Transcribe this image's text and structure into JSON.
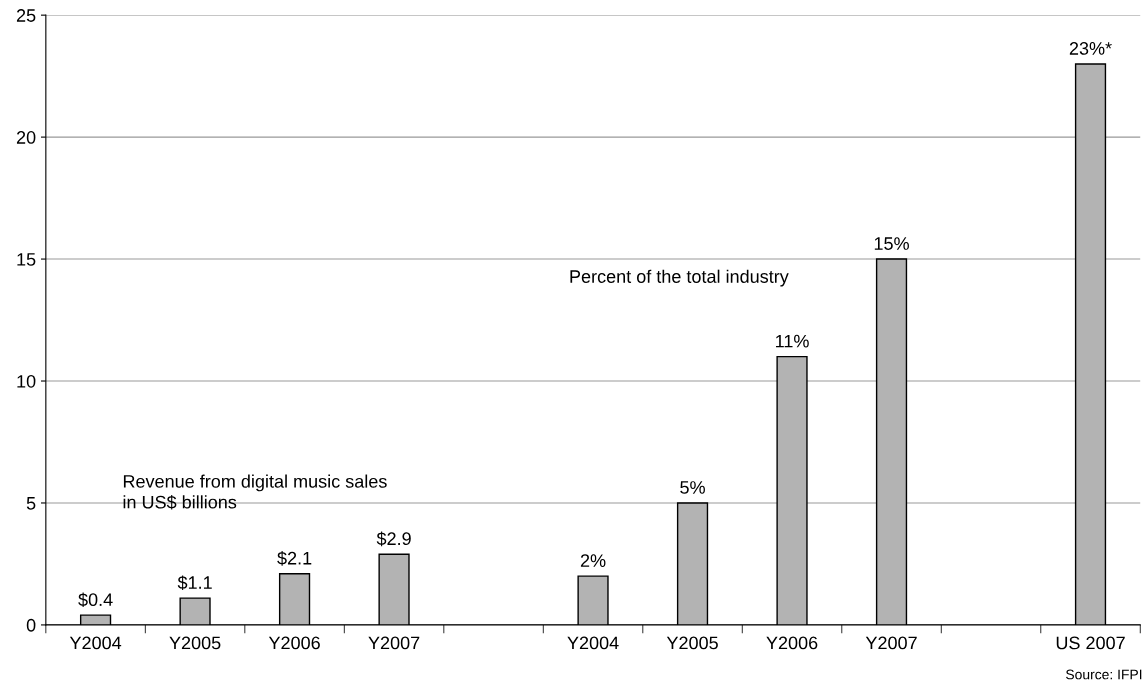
{
  "chart_data": {
    "type": "bar",
    "categories": [
      "Y2004",
      "Y2005",
      "Y2006",
      "Y2007",
      null,
      "Y2004",
      "Y2005",
      "Y2006",
      "Y2007",
      null,
      "US 2007"
    ],
    "values": [
      0.4,
      1.1,
      2.1,
      2.9,
      null,
      2,
      5,
      11,
      15,
      null,
      23
    ],
    "value_labels": [
      "$0.4",
      "$1.1",
      "$2.1",
      "$2.9",
      null,
      "2%",
      "5%",
      "11%",
      "15%",
      null,
      "23%*"
    ],
    "color": "#b3b3b3",
    "ylim": [
      0,
      25
    ],
    "yticks": [
      0,
      5,
      10,
      15,
      20,
      25
    ],
    "grid": "y",
    "legend": false,
    "annotations": [
      "Revenue from digital music sales\nin US$ billions",
      "Percent of the total industry",
      "Source: IFPI"
    ]
  }
}
